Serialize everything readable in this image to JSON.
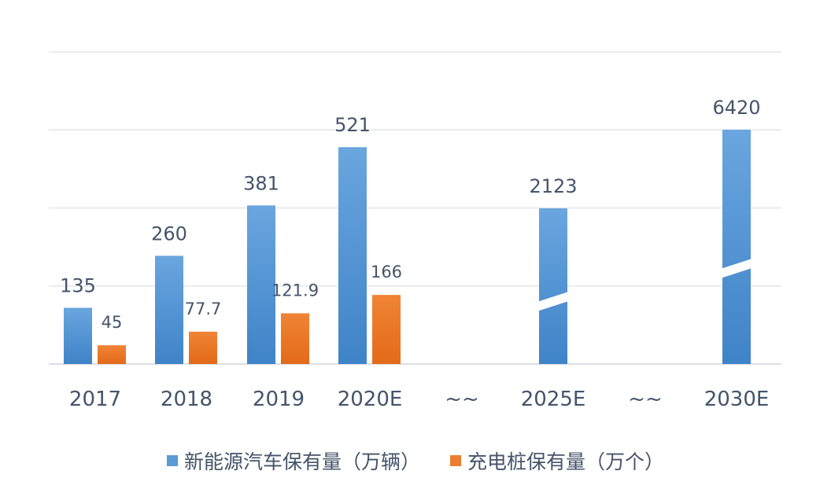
{
  "chart_data": {
    "type": "bar",
    "categories": [
      "2017",
      "2018",
      "2019",
      "2020E",
      "~~",
      "2025E",
      "~~",
      "2030E"
    ],
    "series": [
      {
        "name": "新能源汽车保有量（万辆）",
        "values": [
          135,
          260,
          381,
          521,
          null,
          2123,
          null,
          6420
        ],
        "labels": [
          "135",
          "260",
          "381",
          "521",
          "",
          "2123",
          "",
          "6420"
        ],
        "color": "#5b9bd5"
      },
      {
        "name": "充电桩保有量（万个）",
        "values": [
          45,
          77.7,
          121.9,
          166,
          null,
          null,
          null,
          null
        ],
        "labels": [
          "45",
          "77.7",
          "121.9",
          "166",
          "",
          "",
          "",
          ""
        ],
        "color": "#ed7d31"
      }
    ],
    "axis_breaks": [
      "2025E",
      "2030E"
    ],
    "ylim": [
      0,
      750
    ],
    "grid": true,
    "legend_position": "bottom"
  }
}
